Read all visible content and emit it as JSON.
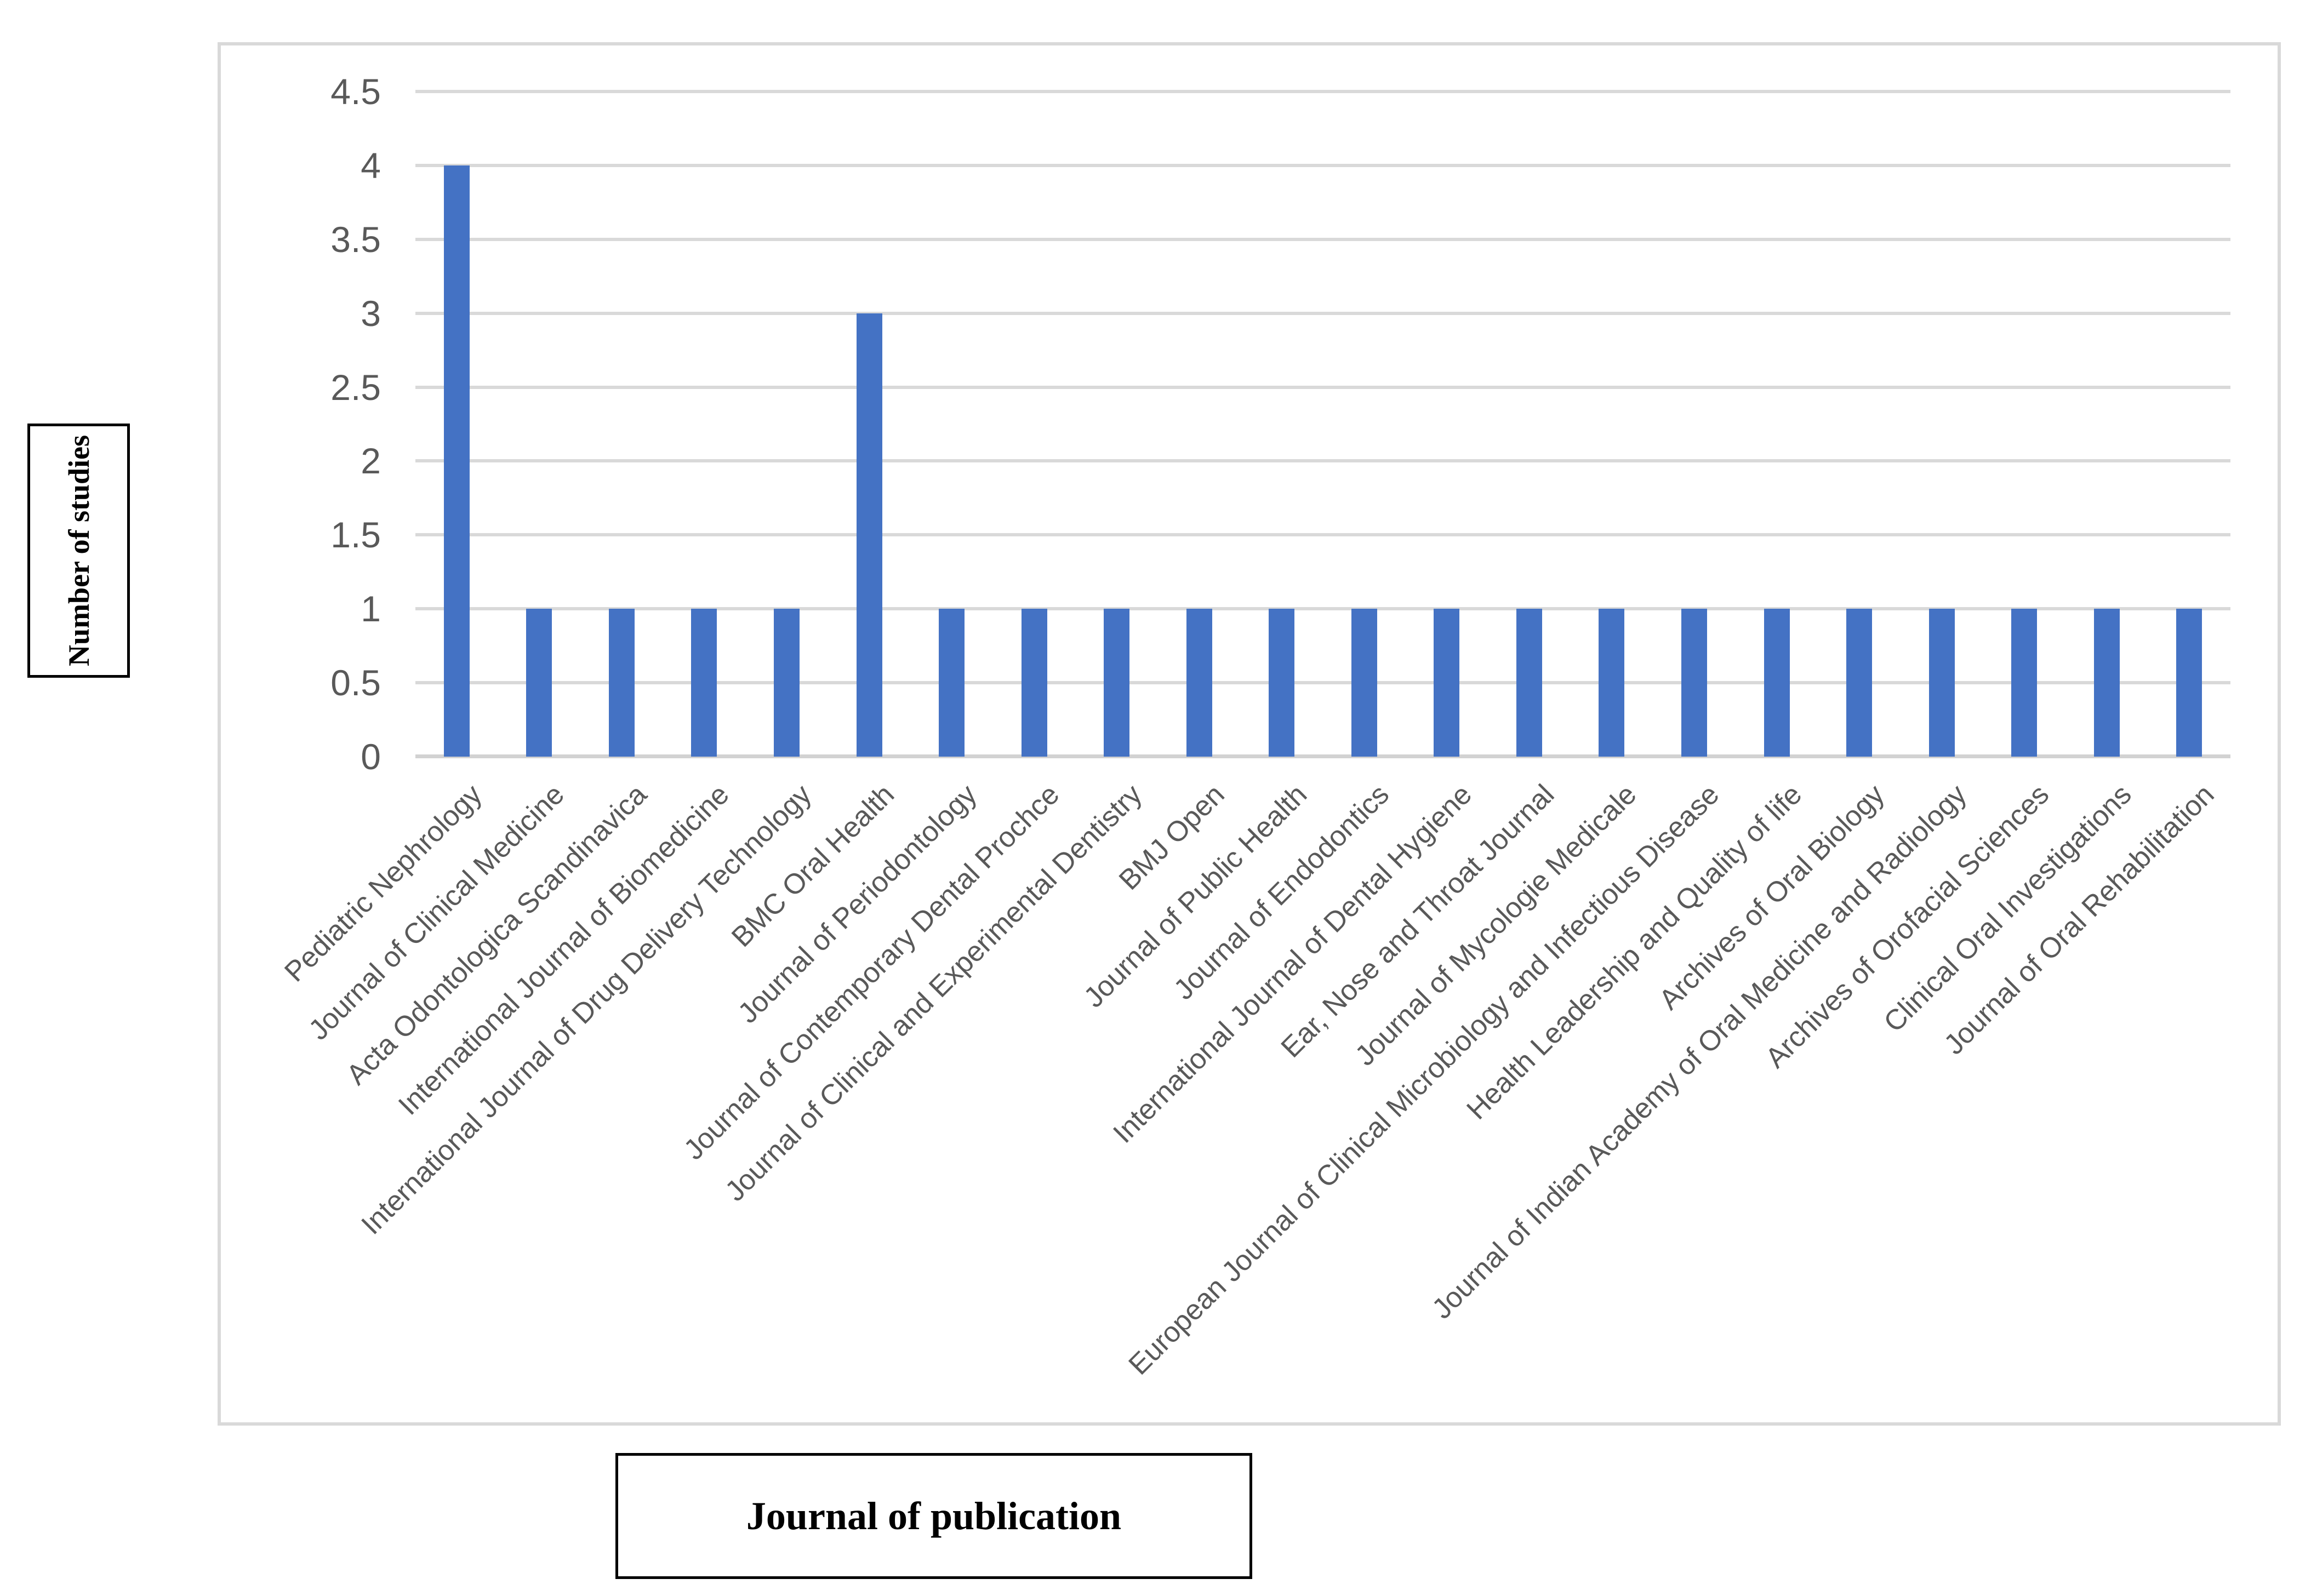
{
  "chart_data": {
    "type": "bar",
    "title": "",
    "xlabel": "Journal of publication",
    "ylabel": "Number of studies",
    "categories": [
      "Pediatric Nephrology",
      "Journal of Clinical Medicine",
      "Acta Odontologica Scandinavica",
      "International Journal of Biomedicine",
      "International Journal of Drug Delivery Technology",
      "BMC Oral Health",
      "Journal of Periodontology",
      "Journal of Contemporary Dental Prochce",
      "Journal of Clinical and Experimental Dentistry",
      "BMJ Open",
      "Journal of Public Health",
      "Journal of Endodontics",
      "International Journal of Dental Hygiene",
      "Ear, Nose and Throat Journal",
      "Journal of Mycologie Medicale",
      "European Journal of Clinical Microbiology and Infectious Disease",
      "Health Leadership and Quality of life",
      "Archives of Oral Biology",
      "Journal of Indian Academy of Oral Medicine and Radiology",
      "Archives of Orofacial Sciences",
      "Clinical Oral Investigations",
      "Journal of Oral Rehabilitation"
    ],
    "values": [
      4,
      1,
      1,
      1,
      1,
      3,
      1,
      1,
      1,
      1,
      1,
      1,
      1,
      1,
      1,
      1,
      1,
      1,
      1,
      1,
      1,
      1
    ],
    "ylim": [
      0,
      4.5
    ],
    "yticks": [
      "0",
      "0.5",
      "1",
      "1.5",
      "2",
      "2.5",
      "3",
      "3.5",
      "4",
      "4.5"
    ],
    "grid": true,
    "legend": false,
    "colors": {
      "bar": "#4472C4",
      "gridline": "#D9D9D9",
      "axis_line": "#D2D2D2",
      "tick_text": "#595959",
      "frame_border": "#D9D9D9",
      "axis_title_text": "#000000"
    }
  }
}
